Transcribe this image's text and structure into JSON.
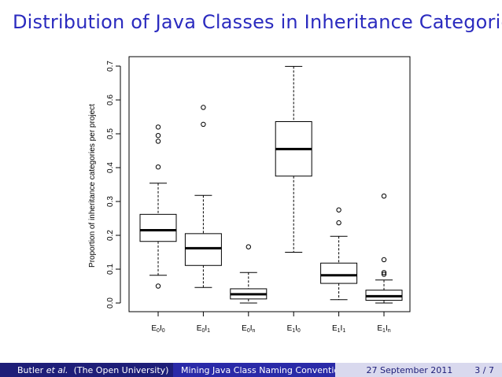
{
  "slide": {
    "title": "Distribution of Java Classes in Inheritance Categories"
  },
  "footer": {
    "author": "Butler",
    "author_etal": "et al.",
    "affiliation": "(The Open University)",
    "talk_title": "Mining Java Class Naming Conventions",
    "date": "27 September 2011",
    "page": "3 / 7"
  },
  "chart_data": {
    "type": "boxplot",
    "title": "",
    "xlabel": "",
    "ylabel": "Proportion of inheritance categories per project",
    "ylim": [
      0.0,
      0.7
    ],
    "yticks": [
      "0.0",
      "0.1",
      "0.2",
      "0.3",
      "0.4",
      "0.5",
      "0.6",
      "0.7"
    ],
    "grid": false,
    "categories": [
      {
        "base": "E",
        "sub1": "0",
        "mid": "I",
        "sub2": "0"
      },
      {
        "base": "E",
        "sub1": "0",
        "mid": "I",
        "sub2": "1"
      },
      {
        "base": "E",
        "sub1": "0",
        "mid": "I",
        "sub2": "n"
      },
      {
        "base": "E",
        "sub1": "1",
        "mid": "I",
        "sub2": "0"
      },
      {
        "base": "E",
        "sub1": "1",
        "mid": "I",
        "sub2": "1"
      },
      {
        "base": "E",
        "sub1": "1",
        "mid": "I",
        "sub2": "n"
      }
    ],
    "boxes": [
      {
        "whisker_low": 0.082,
        "q1": 0.182,
        "median": 0.215,
        "q3": 0.262,
        "whisker_high": 0.354,
        "outliers": [
          0.05,
          0.402,
          0.478,
          0.495,
          0.52
        ]
      },
      {
        "whisker_low": 0.046,
        "q1": 0.111,
        "median": 0.162,
        "q3": 0.205,
        "whisker_high": 0.318,
        "outliers": [
          0.528,
          0.578
        ]
      },
      {
        "whisker_low": 0.0,
        "q1": 0.012,
        "median": 0.026,
        "q3": 0.042,
        "whisker_high": 0.09,
        "outliers": [
          0.166
        ]
      },
      {
        "whisker_low": 0.15,
        "q1": 0.375,
        "median": 0.455,
        "q3": 0.536,
        "whisker_high": 0.699,
        "outliers": []
      },
      {
        "whisker_low": 0.01,
        "q1": 0.058,
        "median": 0.082,
        "q3": 0.118,
        "whisker_high": 0.197,
        "outliers": [
          0.237,
          0.275
        ]
      },
      {
        "whisker_low": 0.0,
        "q1": 0.008,
        "median": 0.02,
        "q3": 0.038,
        "whisker_high": 0.068,
        "outliers": [
          0.085,
          0.09,
          0.128,
          0.316
        ]
      }
    ]
  }
}
